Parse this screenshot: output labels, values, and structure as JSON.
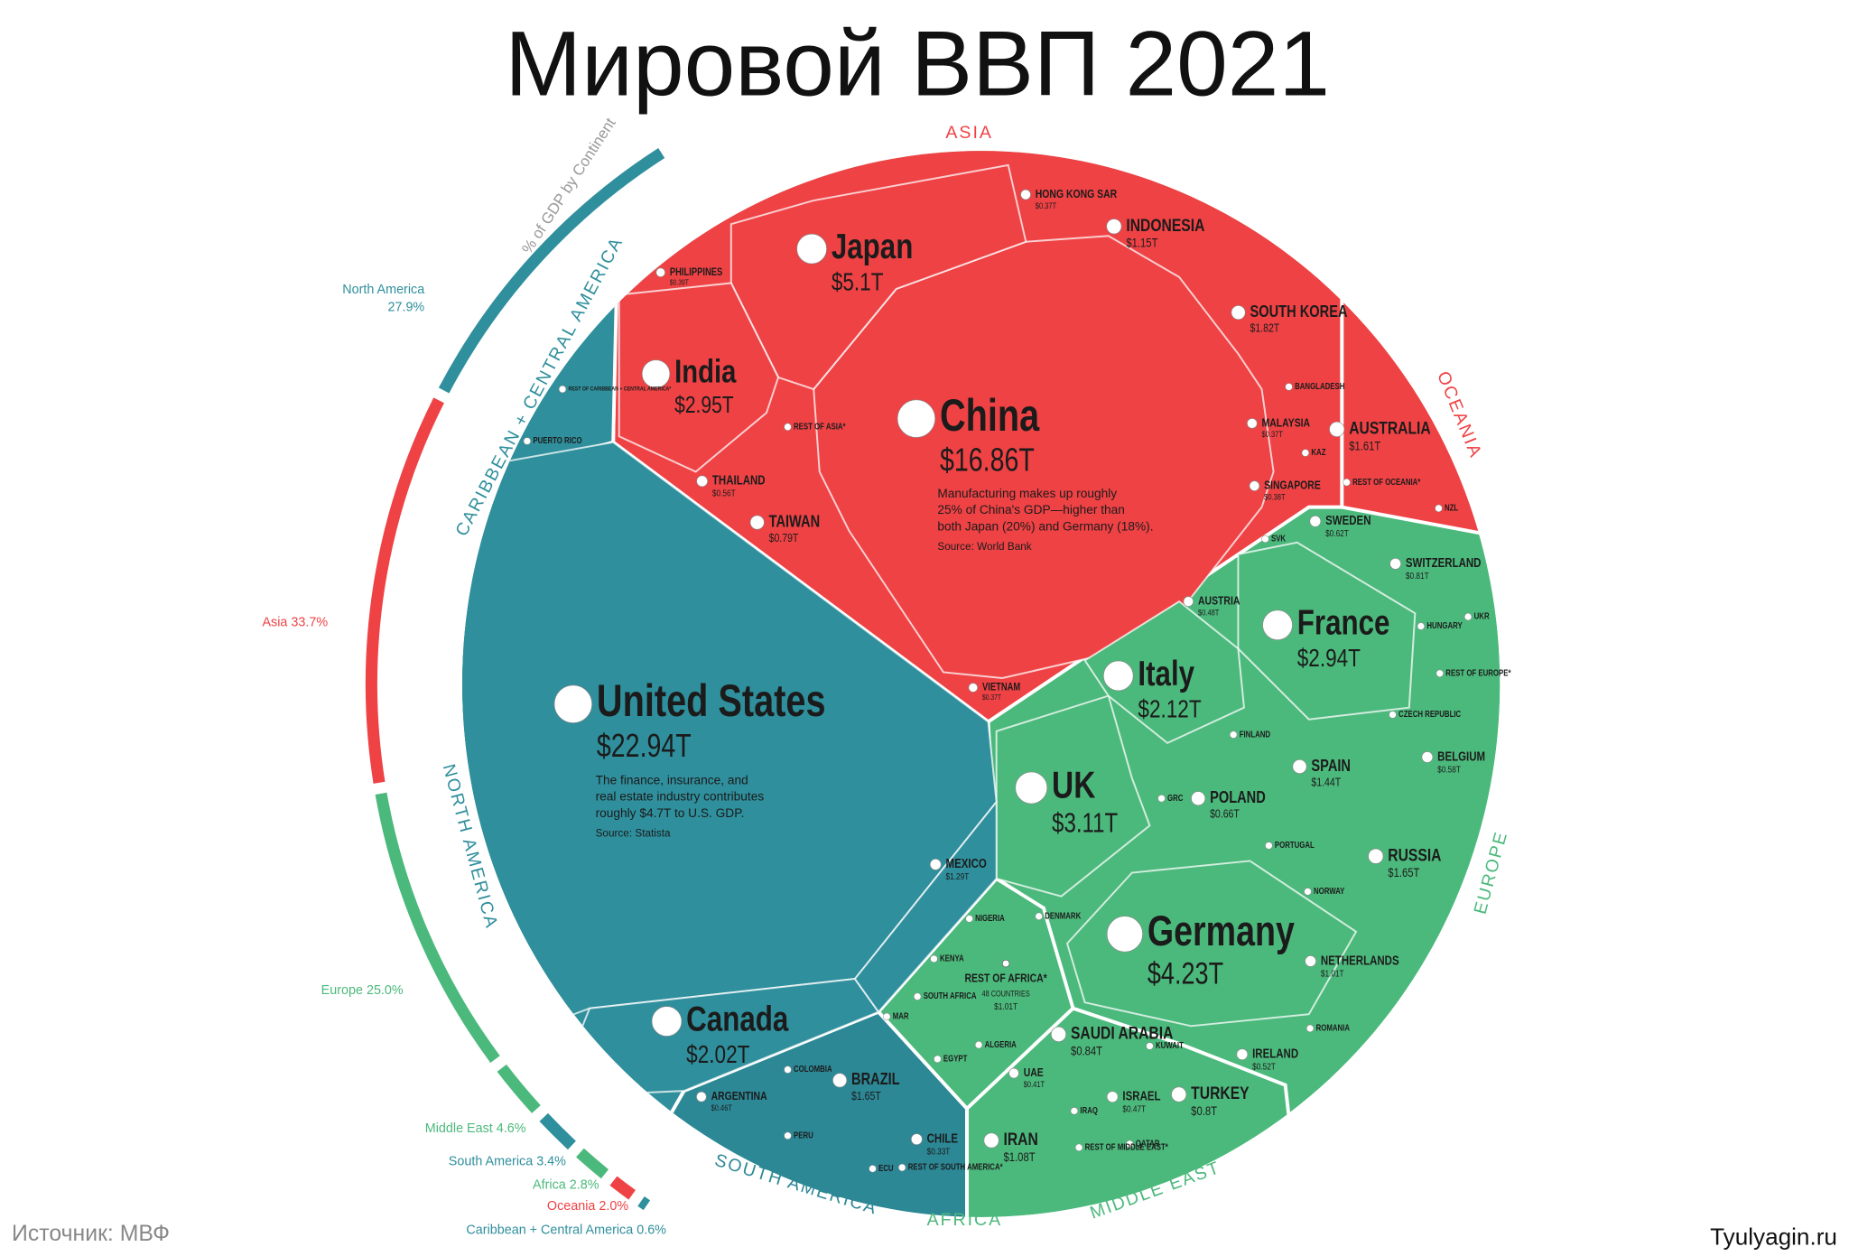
{
  "chart_data": {
    "type": "voronoi-treemap",
    "title": "Мировой ВВП 2021",
    "source": "Источник: МВФ",
    "site": "Tyulyagin.ru",
    "continent_shares": {
      "title": "% of GDP by Continent",
      "names": [
        "North America",
        "Asia",
        "Europe",
        "Middle East",
        "South America",
        "Africa",
        "Oceania",
        "Caribbean + Central America"
      ],
      "values": [
        27.9,
        33.7,
        25.0,
        4.6,
        3.4,
        2.8,
        2.0,
        0.6
      ],
      "value_labels": [
        "27.9%",
        "33.7%",
        "25.0%",
        "4.6%",
        "3.4%",
        "2.8%",
        "2.0%",
        "0.6%"
      ],
      "colors": [
        "#2f8f9c",
        "#ef4245",
        "#4cb97c",
        "#4cb97c",
        "#2f8f9c",
        "#4cb97c",
        "#ef4245",
        "#2f8f9c"
      ]
    },
    "groups": [
      {
        "name": "ASIA",
        "color": "#ef4245",
        "countries": [
          {
            "name": "China",
            "value": 16.86,
            "value_label": "$16.86T"
          },
          {
            "name": "Japan",
            "value": 5.1,
            "value_label": "$5.1T"
          },
          {
            "name": "India",
            "value": 2.95,
            "value_label": "$2.95T"
          },
          {
            "name": "SOUTH KOREA",
            "value": 1.82,
            "value_label": "$1.82T"
          },
          {
            "name": "INDONESIA",
            "value": 1.15,
            "value_label": "$1.15T"
          },
          {
            "name": "TAIWAN",
            "value": 0.79,
            "value_label": "$0.79T"
          },
          {
            "name": "THAILAND",
            "value": 0.56,
            "value_label": "$0.56T"
          },
          {
            "name": "HONG KONG SAR",
            "value": 0.37,
            "value_label": "$0.37T"
          },
          {
            "name": "PHILIPPINES",
            "value": 0.39,
            "value_label": "$0.39T"
          },
          {
            "name": "MALAYSIA",
            "value": 0.37,
            "value_label": "$0.37T"
          },
          {
            "name": "SINGAPORE",
            "value": 0.38,
            "value_label": "$0.38T"
          },
          {
            "name": "VIETNAM",
            "value": 0.37,
            "value_label": "$0.37T"
          }
        ],
        "minor": [
          "BANGLADESH",
          "KAZ",
          "REST OF ASIA*"
        ]
      },
      {
        "name": "OCEANIA",
        "color": "#ef4245",
        "countries": [
          {
            "name": "AUSTRALIA",
            "value": 1.61,
            "value_label": "$1.61T"
          }
        ],
        "minor": [
          "REST OF OCEANIA*",
          "NZL"
        ]
      },
      {
        "name": "EUROPE",
        "color": "#4cb97c",
        "countries": [
          {
            "name": "Germany",
            "value": 4.23,
            "value_label": "$4.23T"
          },
          {
            "name": "UK",
            "value": 3.11,
            "value_label": "$3.11T"
          },
          {
            "name": "France",
            "value": 2.94,
            "value_label": "$2.94T"
          },
          {
            "name": "Italy",
            "value": 2.12,
            "value_label": "$2.12T"
          },
          {
            "name": "RUSSIA",
            "value": 1.65,
            "value_label": "$1.65T"
          },
          {
            "name": "SPAIN",
            "value": 1.44,
            "value_label": "$1.44T"
          },
          {
            "name": "NETHERLANDS",
            "value": 1.01,
            "value_label": "$1.01T"
          },
          {
            "name": "SWITZERLAND",
            "value": 0.81,
            "value_label": "$0.81T"
          },
          {
            "name": "SWEDEN",
            "value": 0.62,
            "value_label": "$0.62T"
          },
          {
            "name": "BELGIUM",
            "value": 0.58,
            "value_label": "$0.58T"
          },
          {
            "name": "IRELAND",
            "value": 0.52,
            "value_label": "$0.52T"
          },
          {
            "name": "POLAND",
            "value": 0.66,
            "value_label": "$0.66T"
          },
          {
            "name": "AUSTRIA",
            "value": 0.48,
            "value_label": "$0.48T"
          }
        ],
        "minor": [
          "SVK",
          "HUNGARY",
          "UKR",
          "REST OF EUROPE*",
          "CZECH REPUBLIC",
          "FINLAND",
          "GRC",
          "PORTUGAL",
          "NORWAY",
          "DENMARK",
          "ROMANIA"
        ]
      },
      {
        "name": "NORTH AMERICA",
        "color": "#2f8f9c",
        "countries": [
          {
            "name": "United States",
            "value": 22.94,
            "value_label": "$22.94T"
          },
          {
            "name": "Canada",
            "value": 2.02,
            "value_label": "$2.02T"
          },
          {
            "name": "MEXICO",
            "value": 1.29,
            "value_label": "$1.29T"
          }
        ],
        "minor": []
      },
      {
        "name": "CARIBBEAN + CENTRAL AMERICA",
        "color": "#2f8f9c",
        "countries": [],
        "minor": [
          "REST OF CARIBBEAN + CENTRAL AMERICA*",
          "PUERTO RICO"
        ]
      },
      {
        "name": "SOUTH AMERICA",
        "color": "#2d8896",
        "countries": [
          {
            "name": "BRAZIL",
            "value": 1.65,
            "value_label": "$1.65T"
          },
          {
            "name": "ARGENTINA",
            "value": 0.46,
            "value_label": "$0.46T"
          },
          {
            "name": "CHILE",
            "value": 0.33,
            "value_label": "$0.33T"
          }
        ],
        "minor": [
          "COLOMBIA",
          "PERU",
          "ECU",
          "REST OF SOUTH AMERICA*"
        ]
      },
      {
        "name": "AFRICA",
        "color": "#4cb97c",
        "countries": [
          {
            "name": "REST OF AFRICA*",
            "note": "48 COUNTRIES",
            "value": 1.01,
            "value_label": "$1.01T"
          }
        ],
        "minor": [
          "NIGERIA",
          "KENYA",
          "SOUTH AFRICA",
          "MAR",
          "EGYPT",
          "ALGERIA"
        ]
      },
      {
        "name": "MIDDLE EAST",
        "color": "#4cb97c",
        "countries": [
          {
            "name": "SAUDI ARABIA",
            "value": 0.84,
            "value_label": "$0.84T"
          },
          {
            "name": "IRAN",
            "value": 1.08,
            "value_label": "$1.08T"
          },
          {
            "name": "TURKEY",
            "value": 0.8,
            "value_label": "$0.8T"
          },
          {
            "name": "ISRAEL",
            "value": 0.47,
            "value_label": "$0.47T"
          },
          {
            "name": "UAE",
            "value": 0.41,
            "value_label": "$0.41T"
          }
        ],
        "minor": [
          "KUWAIT",
          "IRAQ",
          "QATAR",
          "REST OF MIDDLE EAST*"
        ]
      }
    ],
    "annotations": [
      {
        "lines": [
          "Manufacturing makes up roughly",
          "25% of China's GDP—higher than",
          "both Japan (20%) and Germany (18%)."
        ],
        "source": "Source: World Bank"
      },
      {
        "lines": [
          "The finance, insurance, and",
          "real estate industry contributes",
          "roughly $4.7T to U.S. GDP."
        ],
        "source": "Source: Statista"
      }
    ]
  }
}
